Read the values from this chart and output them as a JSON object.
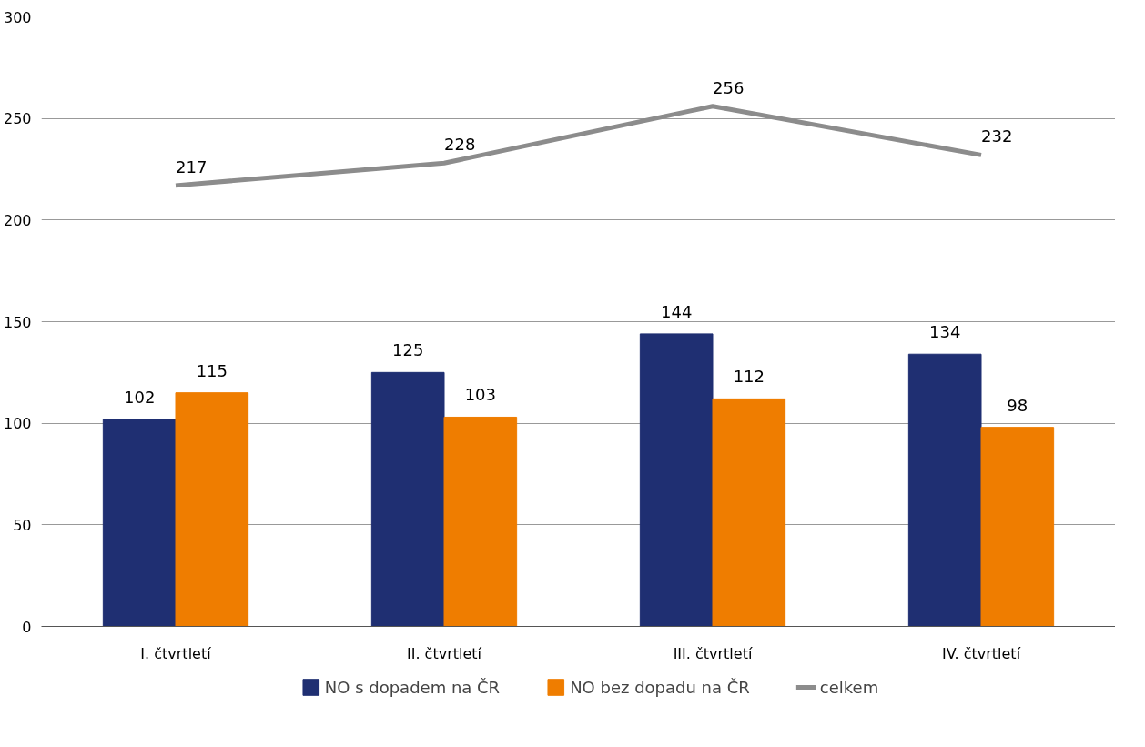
{
  "chart_data": {
    "type": "bar",
    "categories": [
      "I. čtvrtletí",
      "II. čtvrtletí",
      "III. čtvrtletí",
      "IV. čtvrtletí"
    ],
    "series": [
      {
        "name": "NO s dopadem na ČR",
        "color": "#1f2f72",
        "values": [
          102,
          125,
          144,
          134
        ]
      },
      {
        "name": "NO bez dopadu na ČR",
        "color": "#ef7d00",
        "values": [
          115,
          103,
          112,
          98
        ]
      },
      {
        "name": "celkem",
        "type": "line",
        "color": "#8c8c8c",
        "values": [
          217,
          228,
          256,
          232
        ]
      }
    ],
    "ylim": [
      0,
      300
    ],
    "yticks": [
      0,
      50,
      100,
      150,
      200,
      250,
      300
    ],
    "grid": "y",
    "legend": "bottom",
    "data_labels": true
  }
}
